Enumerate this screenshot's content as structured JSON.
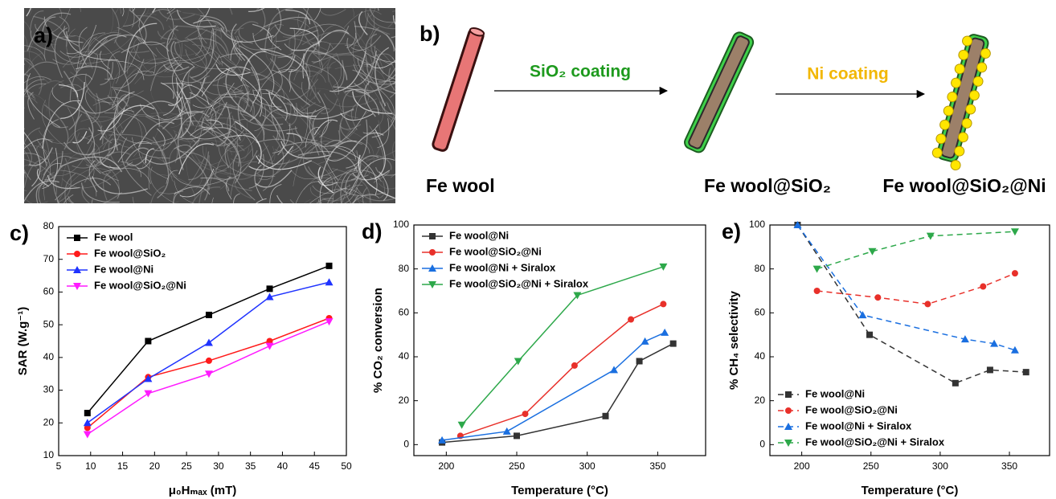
{
  "panel_a": {
    "label": "a)"
  },
  "panel_b": {
    "label": "b)",
    "steps": [
      {
        "label": "SiO₂ coating",
        "color": "#1e9a1e"
      },
      {
        "label": "Ni coating",
        "color": "#f2b705"
      }
    ],
    "materials": [
      "Fe wool",
      "Fe wool@SiO₂",
      "Fe wool@SiO₂@Ni"
    ]
  },
  "chart_data": [
    {
      "type": "line",
      "panel_label": "c)",
      "x_label": "μ₀Hₘₐₓ (mT)",
      "y_label": "SAR (W.g⁻¹)",
      "xlim": [
        5,
        50
      ],
      "ylim": [
        10,
        80
      ],
      "xticks": [
        5,
        10,
        15,
        20,
        25,
        30,
        35,
        40,
        45,
        50
      ],
      "yticks": [
        10,
        20,
        30,
        40,
        50,
        60,
        70,
        80
      ],
      "legend": "upper left",
      "line_style": "solid",
      "series": [
        {
          "name": "Fe wool",
          "color": "#000000",
          "marker": "square",
          "x": [
            9.5,
            19,
            28.5,
            38,
            47.3
          ],
          "values": [
            23,
            45,
            53,
            61,
            68
          ]
        },
        {
          "name": "Fe wool@SiO₂",
          "color": "#ff1a1a",
          "marker": "circle",
          "x": [
            9.5,
            19,
            28.5,
            38,
            47.3
          ],
          "values": [
            18.5,
            34,
            39,
            45,
            52
          ]
        },
        {
          "name": "Fe wool@Ni",
          "color": "#1f33ff",
          "marker": "triangle-up",
          "x": [
            9.5,
            19,
            28.5,
            38,
            47.3
          ],
          "values": [
            20,
            33.5,
            44.5,
            58.5,
            63
          ]
        },
        {
          "name": "Fe wool@SiO₂@Ni",
          "color": "#ff1aff",
          "marker": "triangle-down",
          "x": [
            9.5,
            19,
            28.5,
            38,
            47.3
          ],
          "values": [
            16.5,
            29,
            35,
            43.5,
            51
          ]
        }
      ]
    },
    {
      "type": "line",
      "panel_label": "d)",
      "x_label": "Temperature (°C)",
      "y_label": "% CO₂ conversion",
      "xlim": [
        177,
        384
      ],
      "ylim": [
        -5,
        100
      ],
      "xticks": [
        200,
        250,
        300,
        350
      ],
      "yticks": [
        0,
        20,
        40,
        60,
        80,
        100
      ],
      "legend": "upper left",
      "line_style": "solid",
      "series": [
        {
          "name": "Fe wool@Ni",
          "color": "#333333",
          "marker": "square",
          "x": [
            197,
            250,
            313,
            337,
            361
          ],
          "values": [
            1,
            4,
            13,
            38,
            46
          ]
        },
        {
          "name": "Fe wool@SiO₂@Ni",
          "color": "#e8302a",
          "marker": "circle",
          "x": [
            210,
            256,
            291,
            331,
            354
          ],
          "values": [
            4,
            14,
            36,
            57,
            64
          ]
        },
        {
          "name": "Fe wool@Ni + Siralox",
          "color": "#1a6fe0",
          "marker": "triangle-up",
          "x": [
            197,
            243,
            319,
            341,
            355
          ],
          "values": [
            2,
            6,
            34,
            47,
            51
          ]
        },
        {
          "name": "Fe wool@SiO₂@Ni + Siralox",
          "color": "#2da84a",
          "marker": "triangle-down",
          "x": [
            211,
            251,
            293,
            354
          ],
          "values": [
            9,
            38,
            68,
            81
          ]
        }
      ]
    },
    {
      "type": "line",
      "panel_label": "e)",
      "x_label": "Temperature (°C)",
      "y_label": "% CH₄ selectivity",
      "xlim": [
        177,
        379
      ],
      "ylim": [
        -5,
        100
      ],
      "xticks": [
        200,
        250,
        300,
        350
      ],
      "yticks": [
        0,
        20,
        40,
        60,
        80,
        100
      ],
      "legend": "lower left",
      "line_style": "dashed",
      "series": [
        {
          "name": "Fe wool@Ni",
          "color": "#333333",
          "marker": "square",
          "x": [
            197,
            249,
            311,
            336,
            362
          ],
          "values": [
            100,
            50,
            28,
            34,
            33
          ]
        },
        {
          "name": "Fe wool@SiO₂@Ni",
          "color": "#e8302a",
          "marker": "circle",
          "x": [
            211,
            255,
            291,
            331,
            354
          ],
          "values": [
            70,
            67,
            64,
            72,
            78
          ]
        },
        {
          "name": "Fe wool@Ni + Siralox",
          "color": "#1a6fe0",
          "marker": "triangle-up",
          "x": [
            197,
            244,
            318,
            339,
            354
          ],
          "values": [
            100,
            59,
            48,
            46,
            43
          ]
        },
        {
          "name": "Fe wool@SiO₂@Ni + Siralox",
          "color": "#2da84a",
          "marker": "triangle-down",
          "x": [
            211,
            251,
            293,
            354
          ],
          "values": [
            80,
            88,
            95,
            97
          ]
        }
      ]
    }
  ]
}
